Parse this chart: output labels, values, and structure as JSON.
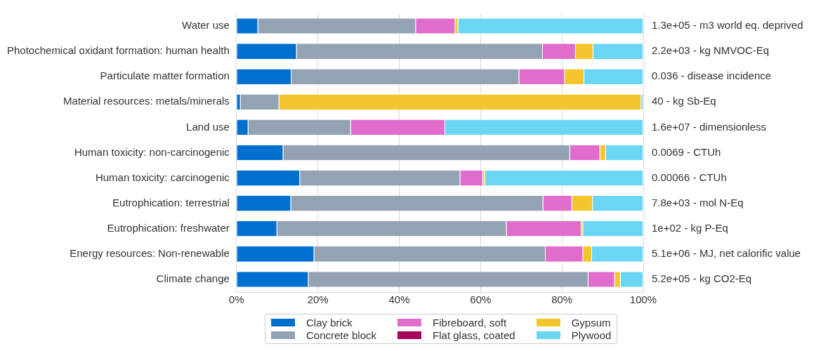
{
  "chart_data": {
    "type": "bar",
    "orientation": "horizontal",
    "stacked": true,
    "categories": [
      "Water use",
      "Photochemical oxidant formation: human health",
      "Particulate matter formation",
      "Material resources: metals/minerals",
      "Land use",
      "Human toxicity: non-carcinogenic",
      "Human toxicity: carcinogenic",
      "Eutrophication: terrestrial",
      "Eutrophication: freshwater",
      "Energy resources: Non-renewable",
      "Climate change"
    ],
    "series": [
      {
        "name": "Clay brick",
        "color": "#0070d0",
        "values": [
          5.3,
          14.8,
          13.5,
          1.0,
          2.9,
          11.5,
          15.6,
          13.4,
          10.0,
          19.1,
          17.7
        ]
      },
      {
        "name": "Concrete block",
        "color": "#94a3b4",
        "values": [
          38.8,
          60.5,
          56.0,
          9.5,
          25.2,
          70.5,
          39.4,
          62.0,
          56.4,
          56.9,
          68.8
        ]
      },
      {
        "name": "Fibreboard, soft",
        "color": "#e06ccc",
        "values": [
          9.7,
          8.1,
          11.2,
          0,
          23.2,
          7.4,
          5.6,
          7.1,
          18.4,
          9.2,
          6.5
        ]
      },
      {
        "name": "Flat glass, coated",
        "color": "#a8005e",
        "values": [
          0,
          0,
          0,
          0,
          0,
          0,
          0,
          0,
          0,
          0,
          0
        ]
      },
      {
        "name": "Gypsum",
        "color": "#f4c52c",
        "values": [
          0.7,
          4.3,
          4.8,
          89.0,
          0,
          1.4,
          0.5,
          5.1,
          0.4,
          2.2,
          1.4
        ]
      },
      {
        "name": "Plywood",
        "color": "#6ad6f4",
        "values": [
          45.5,
          12.3,
          14.5,
          0.5,
          48.7,
          9.2,
          38.9,
          12.4,
          14.8,
          12.6,
          5.6
        ]
      }
    ],
    "xlim": [
      0,
      100
    ],
    "xticks": [
      {
        "value": 0,
        "label": "0%"
      },
      {
        "value": 20,
        "label": "20%"
      },
      {
        "value": 40,
        "label": "40%"
      },
      {
        "value": 60,
        "label": "60%"
      },
      {
        "value": 80,
        "label": "80%"
      },
      {
        "value": 100,
        "label": "100%"
      }
    ],
    "annotations": [
      "1.3e+05 - m3 world eq. deprived",
      "2.2e+03 - kg NMVOC-Eq",
      "0.036 - disease incidence",
      "40 - kg Sb-Eq",
      "1.6e+07 - dimensionless",
      "0.0069 - CTUh",
      "0.00066 - CTUh",
      "7.8e+03 - mol N-Eq",
      "1e+02 - kg P-Eq",
      "5.1e+06 - MJ, net calorific value",
      "5.2e+05 - kg CO2-Eq"
    ],
    "grid": "x",
    "legend": "bottom"
  }
}
